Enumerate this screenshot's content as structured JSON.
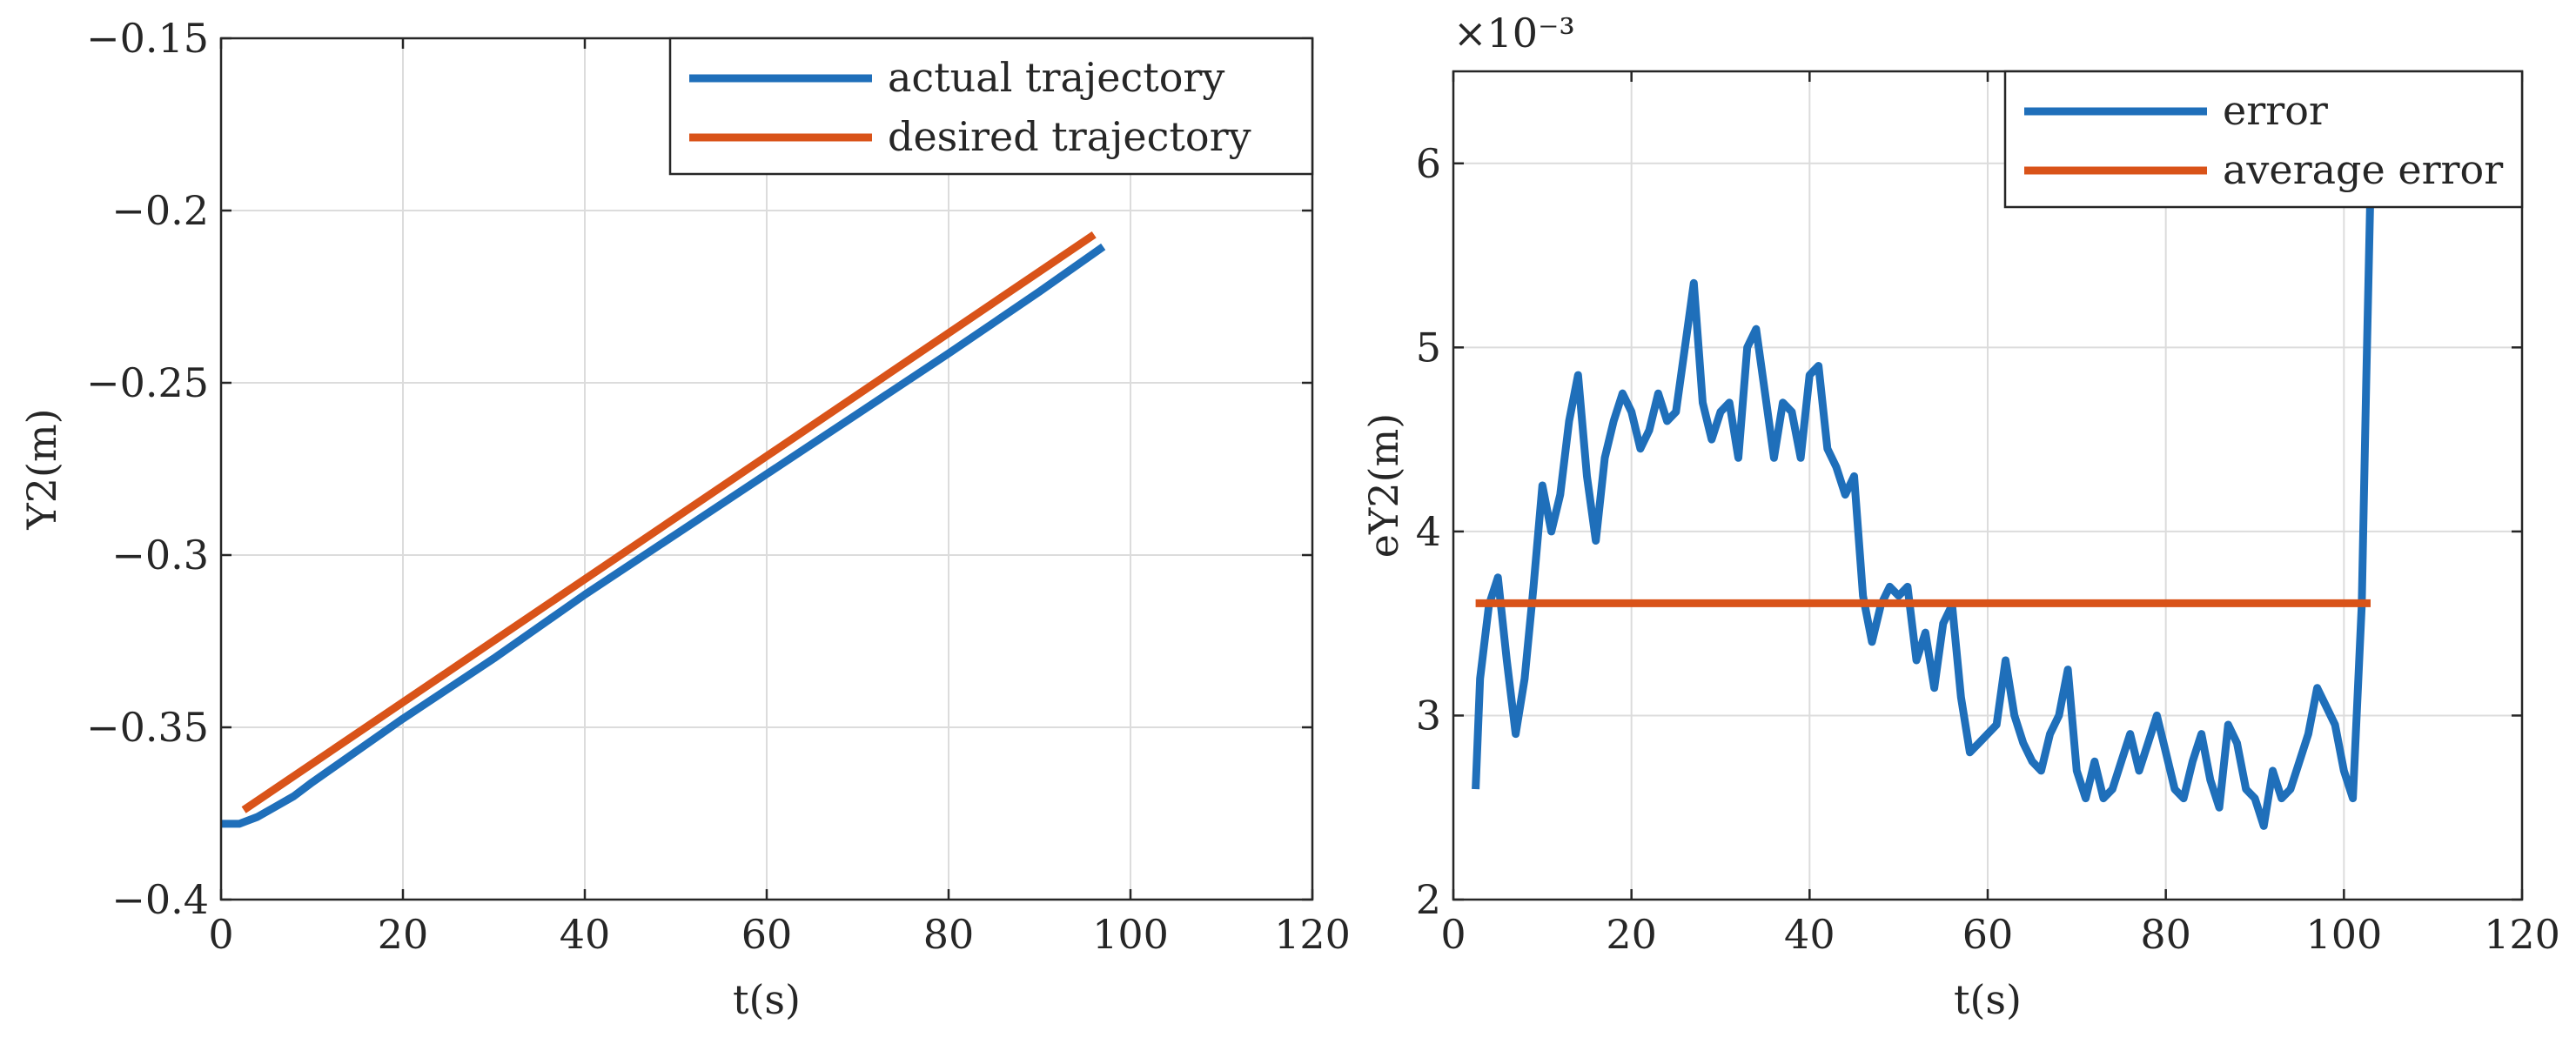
{
  "colors": {
    "blue": "#1f6fba",
    "orange": "#d95319",
    "axis": "#262626",
    "grid": "#dcdcdc"
  },
  "chart_data": [
    {
      "type": "line",
      "xlabel": "t(s)",
      "ylabel": "Y2(m)",
      "xlim": [
        0,
        120
      ],
      "ylim": [
        -0.4,
        -0.15
      ],
      "xticks": [
        0,
        20,
        40,
        60,
        80,
        100,
        120
      ],
      "yticks": [
        -0.4,
        -0.35,
        -0.3,
        -0.25,
        -0.2,
        -0.15
      ],
      "xtick_labels": [
        "0",
        "20",
        "40",
        "60",
        "80",
        "100",
        "120"
      ],
      "ytick_labels": [
        "−0.4",
        "−0.35",
        "−0.3",
        "−0.25",
        "−0.2",
        "−0.15"
      ],
      "grid": true,
      "legend_position": "top-right",
      "series": [
        {
          "name": "actual trajectory",
          "color": "#1f6fba",
          "x": [
            0,
            2,
            3,
            4,
            6,
            8,
            10,
            20,
            30,
            40,
            50,
            60,
            70,
            80,
            90,
            97
          ],
          "y": [
            -0.378,
            -0.378,
            -0.377,
            -0.376,
            -0.373,
            -0.37,
            -0.366,
            -0.3475,
            -0.33,
            -0.3115,
            -0.294,
            -0.2765,
            -0.259,
            -0.2415,
            -0.2235,
            -0.2105
          ]
        },
        {
          "name": "desired trajectory",
          "color": "#d95319",
          "x": [
            2.5,
            96
          ],
          "y": [
            -0.374,
            -0.207
          ]
        }
      ]
    },
    {
      "type": "line",
      "xlabel": "t(s)",
      "ylabel": "eY2(m)",
      "exponent_label": "×10⁻³",
      "xlim": [
        0,
        120
      ],
      "ylim": [
        2,
        6.5
      ],
      "xticks": [
        0,
        20,
        40,
        60,
        80,
        100,
        120
      ],
      "yticks": [
        2,
        3,
        4,
        5,
        6
      ],
      "xtick_labels": [
        "0",
        "20",
        "40",
        "60",
        "80",
        "100",
        "120"
      ],
      "ytick_labels": [
        "2",
        "3",
        "4",
        "5",
        "6"
      ],
      "grid": true,
      "legend_position": "top-right",
      "series": [
        {
          "name": "error",
          "color": "#1f6fba",
          "x": [
            2.5,
            3,
            4,
            5,
            6,
            7,
            8,
            9,
            10,
            11,
            12,
            13,
            14,
            15,
            16,
            17,
            18,
            19,
            20,
            21,
            22,
            23,
            24,
            25,
            26,
            27,
            28,
            29,
            30,
            31,
            32,
            33,
            34,
            35,
            36,
            37,
            38,
            39,
            40,
            41,
            42,
            43,
            44,
            45,
            46,
            47,
            48,
            49,
            50,
            51,
            52,
            53,
            54,
            55,
            56,
            57,
            58,
            59,
            60,
            61,
            62,
            63,
            64,
            65,
            66,
            67,
            68,
            69,
            70,
            71,
            72,
            73,
            74,
            75,
            76,
            77,
            78,
            79,
            80,
            81,
            82,
            83,
            84,
            85,
            86,
            87,
            88,
            89,
            90,
            91,
            92,
            93,
            94,
            95,
            96,
            97,
            98,
            99,
            100,
            101,
            102,
            102.5,
            103
          ],
          "y": [
            2.6,
            3.2,
            3.6,
            3.75,
            3.3,
            2.9,
            3.2,
            3.7,
            4.25,
            4.0,
            4.2,
            4.6,
            4.85,
            4.3,
            3.95,
            4.4,
            4.6,
            4.75,
            4.65,
            4.45,
            4.55,
            4.75,
            4.6,
            4.65,
            5.0,
            5.35,
            4.7,
            4.5,
            4.65,
            4.7,
            4.4,
            5.0,
            5.1,
            4.75,
            4.4,
            4.7,
            4.65,
            4.4,
            4.85,
            4.9,
            4.45,
            4.35,
            4.2,
            4.3,
            3.65,
            3.4,
            3.6,
            3.7,
            3.65,
            3.7,
            3.3,
            3.45,
            3.15,
            3.5,
            3.6,
            3.1,
            2.8,
            2.85,
            2.9,
            2.95,
            3.3,
            3.0,
            2.85,
            2.75,
            2.7,
            2.9,
            3.0,
            3.25,
            2.7,
            2.55,
            2.75,
            2.55,
            2.6,
            2.75,
            2.9,
            2.7,
            2.85,
            3.0,
            2.8,
            2.6,
            2.55,
            2.75,
            2.9,
            2.65,
            2.5,
            2.95,
            2.85,
            2.6,
            2.55,
            2.4,
            2.7,
            2.55,
            2.6,
            2.75,
            2.9,
            3.15,
            3.05,
            2.95,
            2.7,
            2.55,
            3.6,
            4.8,
            5.9
          ]
        },
        {
          "name": "average error",
          "color": "#d95319",
          "x": [
            2.5,
            103
          ],
          "y": [
            3.61,
            3.61
          ]
        }
      ]
    }
  ]
}
